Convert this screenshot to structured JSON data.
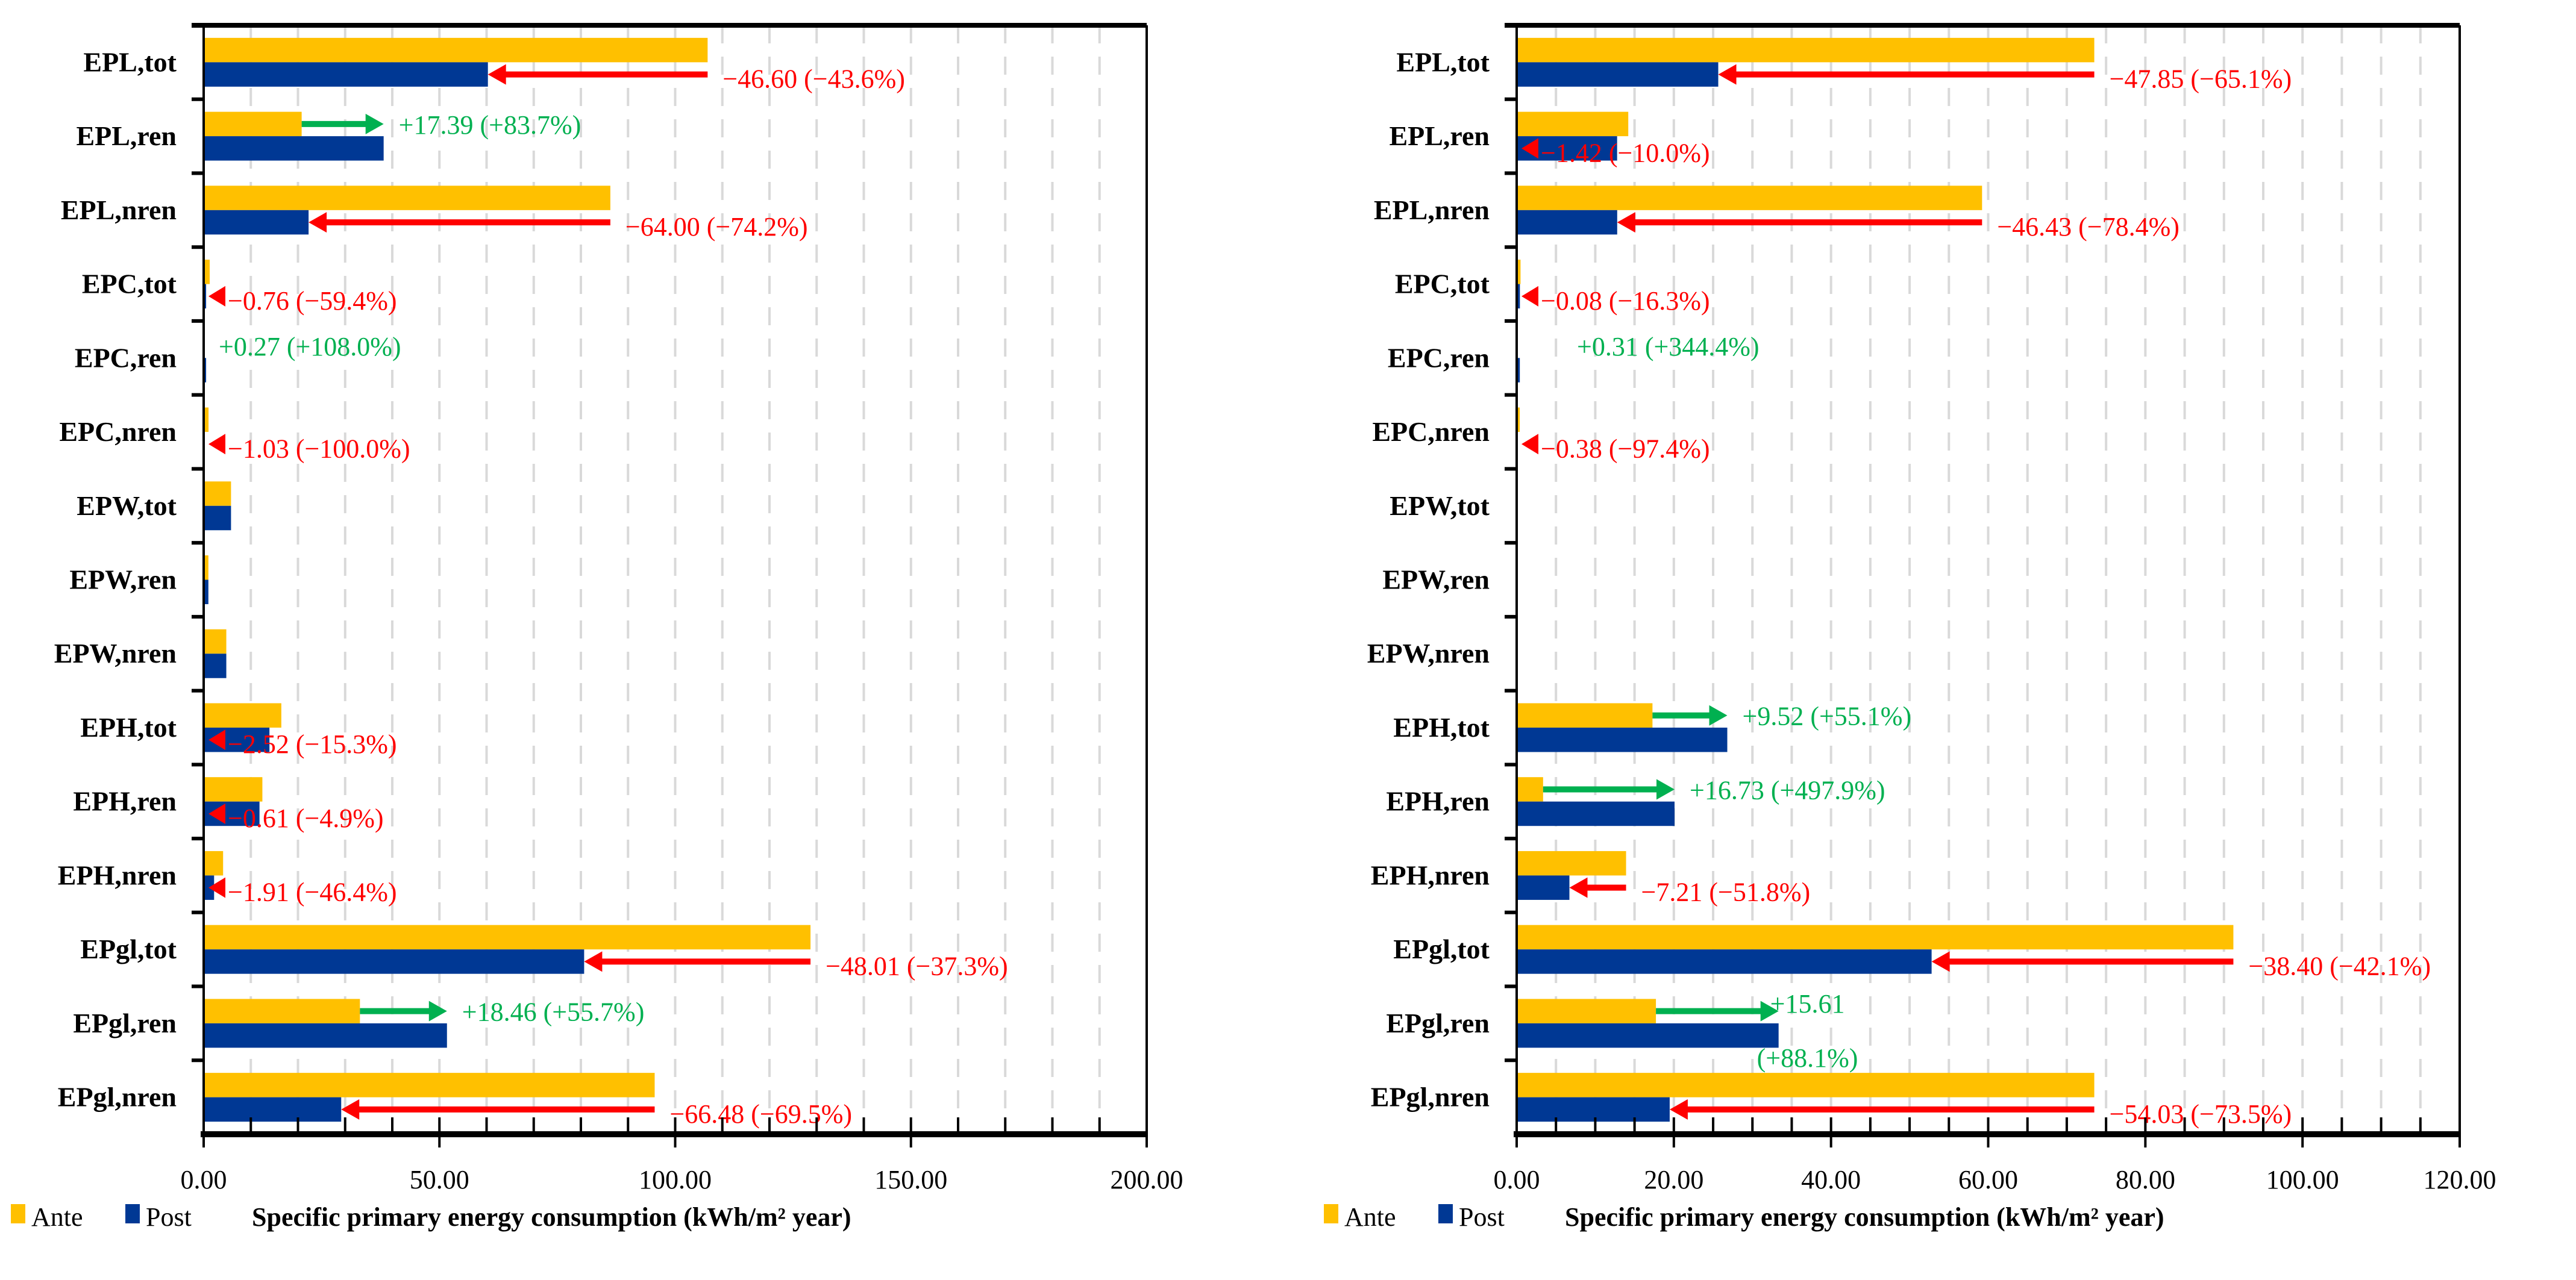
{
  "colors": {
    "ante": "#FFC000",
    "post": "#003894",
    "decrease": "#FF0000",
    "increase": "#00B050",
    "grid": "#D9D9D9"
  },
  "chart_data": [
    {
      "type": "bar",
      "orientation": "horizontal",
      "xlabel": "Specific primary energy consumption (kWh/m² year)",
      "xlim": [
        0,
        200
      ],
      "major_ticks": [
        0,
        50,
        100,
        150,
        200
      ],
      "tick_labels": [
        "0.00",
        "50.00",
        "100.00",
        "150.00",
        "200.00"
      ],
      "minor_step": 10,
      "legend": [
        "Ante",
        "Post"
      ],
      "legend_position": "bottom-left",
      "categories": [
        "EPL,tot",
        "EPL,ren",
        "EPL,nren",
        "EPC,tot",
        "EPC,ren",
        "EPC,nren",
        "EPW,tot",
        "EPW,ren",
        "EPW,nren",
        "EPH,tot",
        "EPH,ren",
        "EPH,nren",
        "EPgl,tot",
        "EPgl,ren",
        "EPgl,nren"
      ],
      "series": [
        {
          "name": "Ante",
          "values": [
            106.88,
            20.78,
            86.25,
            1.28,
            0.25,
            1.03,
            5.8,
            1.0,
            4.8,
            16.47,
            12.45,
            4.12,
            128.7,
            33.14,
            95.65
          ]
        },
        {
          "name": "Post",
          "values": [
            60.28,
            38.17,
            22.25,
            0.52,
            0.52,
            0.0,
            5.8,
            1.0,
            4.8,
            13.95,
            11.84,
            2.21,
            80.69,
            51.6,
            29.17
          ]
        }
      ],
      "annotations": [
        "−46.60 (−43.6%)",
        "+17.39 (+83.7%)",
        "−64.00 (−74.2%)",
        "−0.76 (−59.4%)",
        "+0.27 (+108.0%)",
        "−1.03 (−100.0%)",
        "",
        "",
        "",
        "−2.52 (−15.3%)",
        "−0.61 (−4.9%)",
        "−1.91 (−46.4%)",
        "−48.01 (−37.3%)",
        "+18.46 (+55.7%)",
        "−66.48 (−69.5%)"
      ]
    },
    {
      "type": "bar",
      "orientation": "horizontal",
      "xlabel": "Specific primary energy consumption (kWh/m² year)",
      "xlim": [
        0,
        120
      ],
      "major_ticks": [
        0,
        20,
        40,
        60,
        80,
        100,
        120
      ],
      "tick_labels": [
        "0.00",
        "20.00",
        "40.00",
        "60.00",
        "80.00",
        "100.00",
        "120.00"
      ],
      "minor_step": 5,
      "legend": [
        "Ante",
        "Post"
      ],
      "legend_position": "bottom-left",
      "categories": [
        "EPL,tot",
        "EPL,ren",
        "EPL,nren",
        "EPC,tot",
        "EPC,ren",
        "EPC,nren",
        "EPW,tot",
        "EPW,ren",
        "EPW,nren",
        "EPH,tot",
        "EPH,ren",
        "EPH,nren",
        "EPgl,tot",
        "EPgl,ren",
        "EPgl,nren"
      ],
      "series": [
        {
          "name": "Ante",
          "values": [
            73.5,
            14.2,
            59.22,
            0.49,
            0.09,
            0.39,
            0,
            0,
            0,
            17.28,
            3.36,
            13.92,
            91.2,
            17.72,
            73.5
          ]
        },
        {
          "name": "Post",
          "values": [
            25.65,
            12.78,
            12.79,
            0.41,
            0.4,
            0.01,
            0,
            0,
            0,
            26.8,
            20.09,
            6.71,
            52.8,
            33.33,
            19.47
          ]
        }
      ],
      "annotations": [
        "−47.85 (−65.1%)",
        "−1.42 (−10.0%)",
        "−46.43 (−78.4%)",
        "−0.08 (−16.3%)",
        "+0.31 (+344.4%)",
        "−0.38 (−97.4%)",
        "",
        "",
        "",
        "+9.52 (+55.1%)",
        "+16.73 (+497.9%)",
        "−7.21 (−51.8%)",
        "−38.40 (−42.1%)",
        "+15.61 (+88.1%)",
        "−54.03 (−73.5%)"
      ]
    }
  ]
}
